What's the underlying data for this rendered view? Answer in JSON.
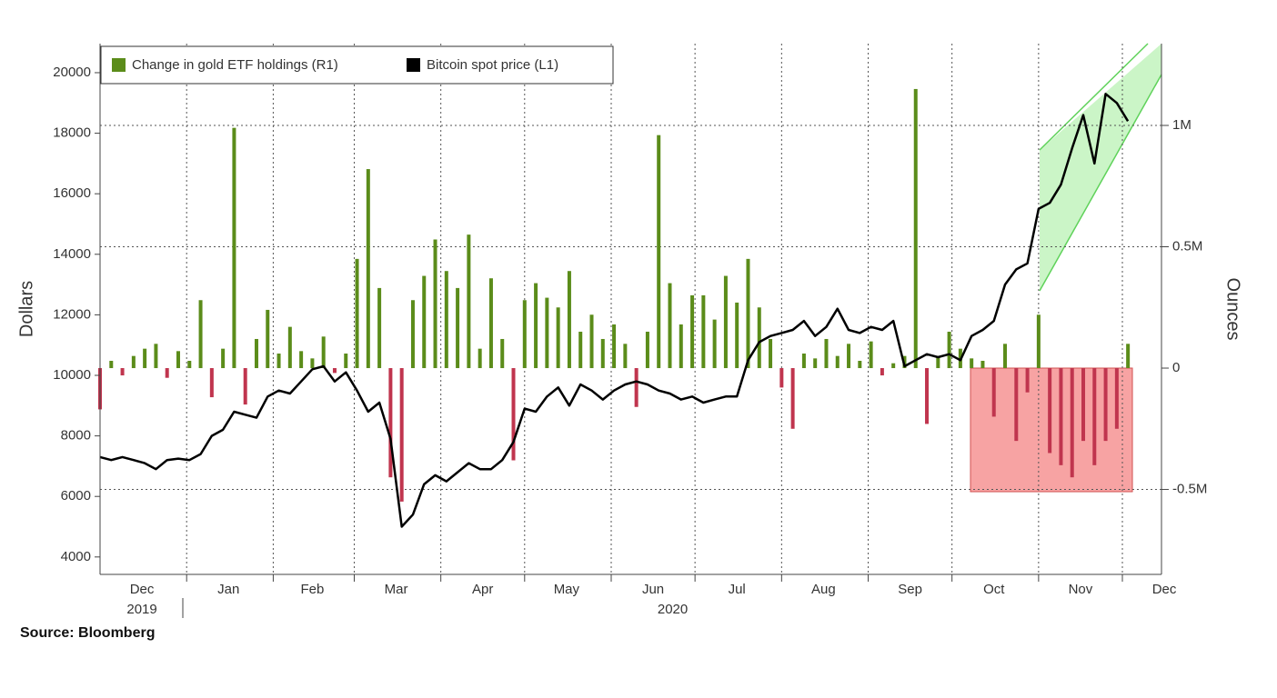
{
  "chart_data": {
    "type": "combo",
    "y_label": "Dollars",
    "y2_label": "Ounces",
    "source": "Source:  Bloomberg",
    "xlim": [
      0,
      380
    ],
    "xticks": [
      {
        "value": 15,
        "label": "Dec"
      },
      {
        "value": 46,
        "label": "Jan"
      },
      {
        "value": 76,
        "label": "Feb"
      },
      {
        "value": 106,
        "label": "Mar"
      },
      {
        "value": 137,
        "label": "Apr"
      },
      {
        "value": 167,
        "label": "May"
      },
      {
        "value": 198,
        "label": "Jun"
      },
      {
        "value": 228,
        "label": "Jul"
      },
      {
        "value": 259,
        "label": "Aug"
      },
      {
        "value": 290,
        "label": "Sep"
      },
      {
        "value": 320,
        "label": "Oct"
      },
      {
        "value": 351,
        "label": "Nov"
      },
      {
        "value": 381,
        "label": "Dec"
      }
    ],
    "month_starts": [
      31,
      62,
      91,
      122,
      152,
      183,
      213,
      244,
      275,
      305,
      336,
      366
    ],
    "year_labels": [
      {
        "value": 15,
        "label": "2019"
      },
      {
        "value": 205,
        "label": "2020"
      }
    ],
    "ylim": [
      3424,
      20960
    ],
    "yticks": [
      4000,
      6000,
      8000,
      10000,
      12000,
      14000,
      16000,
      18000,
      20000
    ],
    "y2lim": [
      -850000,
      1337000
    ],
    "y2ticks": [
      {
        "value": -500000,
        "label": "-0.5M"
      },
      0,
      {
        "value": 500000,
        "label": "0.5M"
      },
      {
        "value": 1000000,
        "label": "1M"
      }
    ],
    "grid": true,
    "legend": "top-left",
    "x": [
      0,
      4,
      8,
      12,
      16,
      20,
      24,
      28,
      32,
      36,
      40,
      44,
      48,
      52,
      56,
      60,
      64,
      68,
      72,
      76,
      80,
      84,
      88,
      92,
      96,
      100,
      104,
      108,
      112,
      116,
      120,
      124,
      128,
      132,
      136,
      140,
      144,
      148,
      152,
      156,
      160,
      164,
      168,
      172,
      176,
      180,
      184,
      188,
      192,
      196,
      200,
      204,
      208,
      212,
      216,
      220,
      224,
      228,
      232,
      236,
      240,
      244,
      248,
      252,
      256,
      260,
      264,
      268,
      272,
      276,
      280,
      284,
      288,
      292,
      296,
      300,
      304,
      308,
      312,
      316,
      320,
      324,
      328,
      332,
      336,
      340,
      344,
      348,
      352,
      356,
      360,
      364,
      368
    ],
    "series": [
      {
        "name": "Change in gold ETF holdings (R1)",
        "type": "bar",
        "axis": "y2",
        "color": "#5b8c1a",
        "negative_color": "#c0354e",
        "values": [
          -170000,
          30000,
          -30000,
          50000,
          80000,
          100000,
          -40000,
          70000,
          30000,
          280000,
          -120000,
          80000,
          990000,
          -150000,
          120000,
          240000,
          60000,
          170000,
          70000,
          40000,
          130000,
          -20000,
          60000,
          450000,
          820000,
          330000,
          -450000,
          -550000,
          280000,
          380000,
          530000,
          400000,
          330000,
          550000,
          80000,
          370000,
          120000,
          -380000,
          280000,
          350000,
          290000,
          250000,
          400000,
          150000,
          220000,
          120000,
          180000,
          100000,
          -160000,
          150000,
          960000,
          350000,
          180000,
          300000,
          300000,
          200000,
          380000,
          270000,
          450000,
          250000,
          120000,
          -80000,
          -250000,
          60000,
          40000,
          120000,
          50000,
          100000,
          30000,
          110000,
          -30000,
          20000,
          50000,
          1150000,
          -230000,
          50000,
          150000,
          80000,
          40000,
          30000,
          -200000,
          100000,
          -300000,
          -100000,
          220000,
          -350000,
          -400000,
          -450000,
          -300000,
          -400000,
          -300000,
          -250000,
          100000
        ]
      },
      {
        "name": "Bitcoin spot price (L1)",
        "type": "line",
        "color": "#000000",
        "values": [
          7300,
          7200,
          7300,
          7200,
          7100,
          6900,
          7200,
          7250,
          7200,
          7400,
          8000,
          8200,
          8800,
          8700,
          8600,
          9300,
          9500,
          9400,
          9800,
          10200,
          10300,
          9800,
          10100,
          9500,
          8800,
          9100,
          7900,
          5000,
          5400,
          6400,
          6700,
          6500,
          6800,
          7100,
          6900,
          6900,
          7200,
          7800,
          8900,
          8800,
          9300,
          9600,
          9000,
          9700,
          9500,
          9200,
          9500,
          9700,
          9800,
          9700,
          9500,
          9400,
          9200,
          9300,
          9100,
          9200,
          9300,
          9300,
          10500,
          11100,
          11300,
          11400,
          11500,
          11800,
          11300,
          11600,
          12200,
          11500,
          11400,
          11600,
          11500,
          11800,
          10300,
          10500,
          10700,
          10600,
          10700,
          10500,
          11300,
          11500,
          11800,
          13000,
          13500,
          13700,
          15500,
          15700,
          16300,
          17500,
          18600,
          17000,
          19300,
          19000,
          18400
        ]
      }
    ]
  }
}
